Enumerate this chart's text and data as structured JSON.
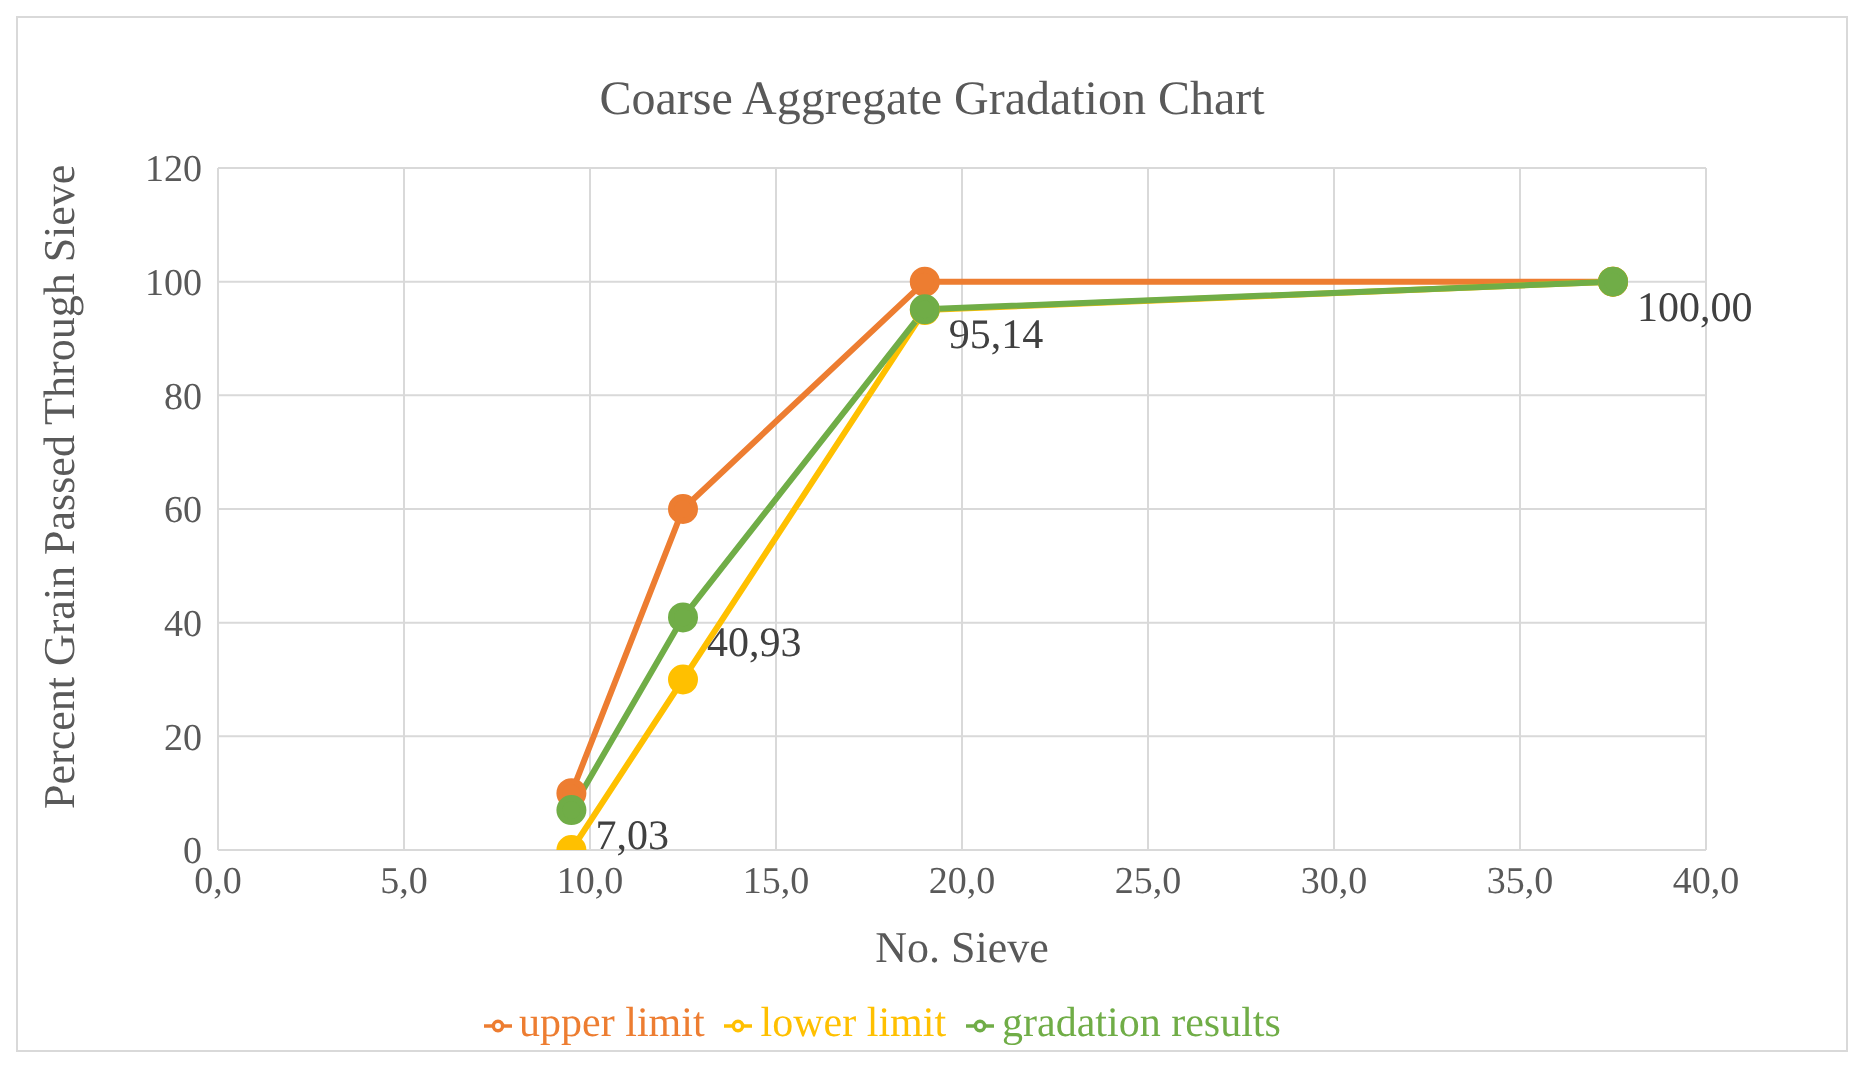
{
  "chart_data": {
    "type": "line",
    "title": "Coarse Aggregate Gradation Chart",
    "xlabel": "No. Sieve",
    "ylabel": "Percent Grain Passed Through Sieve",
    "x": [
      9.5,
      12.5,
      19,
      37.5
    ],
    "series": [
      {
        "name": "upper limit",
        "color": "#ed7d31",
        "values": [
          10,
          60,
          100,
          100
        ]
      },
      {
        "name": "lower limit",
        "color": "#ffc000",
        "values": [
          0,
          30,
          95,
          100
        ]
      },
      {
        "name": "gradation results",
        "color": "#70ad47",
        "values": [
          7.03,
          40.93,
          95.14,
          100.0
        ],
        "value_labels": [
          "7,03",
          "40,93",
          "95,14",
          "100,00"
        ]
      }
    ],
    "xlim": [
      0,
      40
    ],
    "xticks": [
      {
        "value": 0,
        "label": "0,0"
      },
      {
        "value": 5,
        "label": "5,0"
      },
      {
        "value": 10,
        "label": "10,0"
      },
      {
        "value": 15,
        "label": "15,0"
      },
      {
        "value": 20,
        "label": "20,0"
      },
      {
        "value": 25,
        "label": "25,0"
      },
      {
        "value": 30,
        "label": "30,0"
      },
      {
        "value": 35,
        "label": "35,0"
      },
      {
        "value": 40,
        "label": "40,0"
      }
    ],
    "ylim": [
      0,
      120
    ],
    "yticks": [
      0,
      20,
      40,
      60,
      80,
      100,
      120
    ],
    "grid": true,
    "legend": "bottom",
    "marker": "circle",
    "line_style": "solid"
  }
}
